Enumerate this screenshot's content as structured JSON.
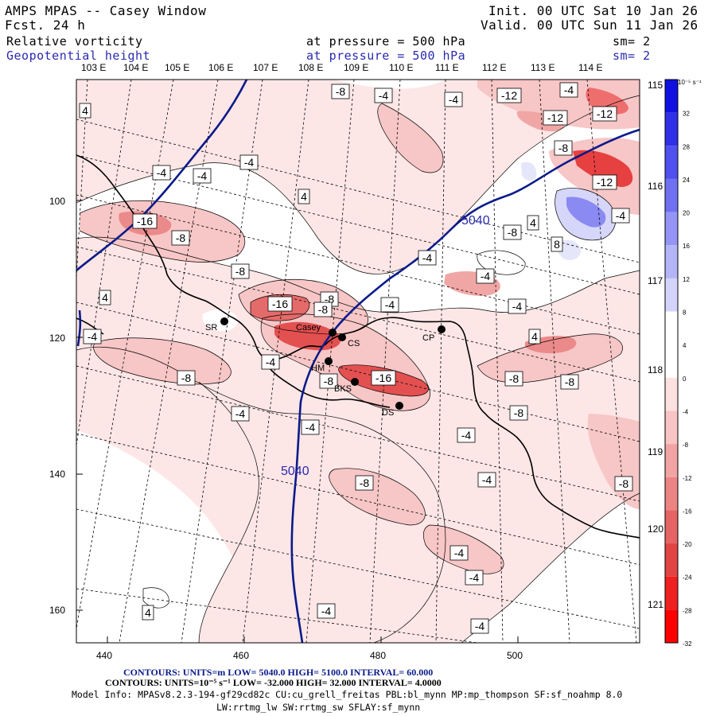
{
  "header": {
    "model_title": "AMPS MPAS -- Casey Window",
    "forecast": "Fcst.   24 h",
    "init": "Init. 00 UTC Sat 10 Jan 26",
    "valid": "Valid. 00 UTC Sun 11 Jan 26"
  },
  "fields": {
    "fill_name": "Relative vorticity",
    "fill_pressure": "at pressure =  500 hPa",
    "fill_smooth": "sm= 2",
    "contour_name": "Geopotential height",
    "contour_pressure": "at pressure =  500 hPa",
    "contour_smooth": "sm= 2"
  },
  "axes": {
    "top_lon_labels": [
      "103 E",
      "104 E",
      "105 E",
      "106 E",
      "107 E",
      "108 E",
      "109 E",
      "110 E",
      "111 E",
      "112 E",
      "113 E",
      "114 E"
    ],
    "right_lon_labels": [
      "115 E",
      "116 E",
      "117 E",
      "118 E",
      "119 E",
      "120 E",
      "121 E"
    ],
    "y_ticks": [
      "100",
      "120",
      "140",
      "160"
    ],
    "x_ticks": [
      "440",
      "460",
      "480",
      "500"
    ]
  },
  "colorbar": {
    "unit_label": "10⁻⁵ s⁻¹",
    "levels": [
      "32",
      "28",
      "24",
      "20",
      "16",
      "12",
      "8",
      "4",
      "0",
      "-4",
      "-8",
      "-12",
      "-16",
      "-20",
      "-24",
      "-28",
      "-32"
    ],
    "colors": [
      "#1010e0",
      "#3030e8",
      "#5050ee",
      "#7070f2",
      "#9494f6",
      "#b4b4f8",
      "#d4d4fa",
      "#ffffff",
      "#ffffff",
      "#fde0e0",
      "#f8c4c4",
      "#f2a4a4",
      "#ec8484",
      "#e66464",
      "#e24444",
      "#ee2020",
      "#ff0000"
    ]
  },
  "contour_labels": {
    "height_1": "5040",
    "height_2": "5040",
    "vorticity": [
      "4",
      "-4",
      "-4",
      "-4",
      "-4",
      "4",
      "-8",
      "-4",
      "-4",
      "-12",
      "-8",
      "-12",
      "-8",
      "-12",
      "-8",
      "-16",
      "-4",
      "-12",
      "-8",
      "8",
      "4",
      "-4",
      "-8",
      "-4",
      "-4",
      "-16",
      "-8",
      "-4",
      "4",
      "-4",
      "-4",
      "4",
      "-8",
      "-8",
      "-8",
      "-16",
      "-8",
      "-4",
      "-4",
      "-8",
      "-4",
      "-8",
      "-4",
      "-8",
      "-4",
      "-4",
      "4",
      "-4",
      "-4"
    ]
  },
  "stations": [
    {
      "name": "SR"
    },
    {
      "name": "Casey"
    },
    {
      "name": "CS"
    },
    {
      "name": "CP"
    },
    {
      "name": "HM"
    },
    {
      "name": "BKS"
    },
    {
      "name": "DS"
    }
  ],
  "footer": {
    "contours_height": "CONTOURS:  UNITS=m  LOW=  5040.0          HIGH=  5100.0          INTERVAL=    60.000",
    "contours_vort": "CONTOURS:  UNITS=10⁻⁵ s⁻¹  LOW= -32.000        HIGH=  32.000        INTERVAL=   4.0000",
    "model_info": "Model Info: MPASv8.2.3-194-gf29cd82c CU:cu_grell_freitas PBL:bl_mynn MP:mp_thompson SF:sf_noahmp 8.0",
    "model_info2": "LW:rrtmg_lw SW:rrtmg_sw SFLAY:sf_mynn"
  },
  "colors": {
    "height_contour": "#0a1a8a",
    "coast": "#000000",
    "grid": "#000000"
  }
}
